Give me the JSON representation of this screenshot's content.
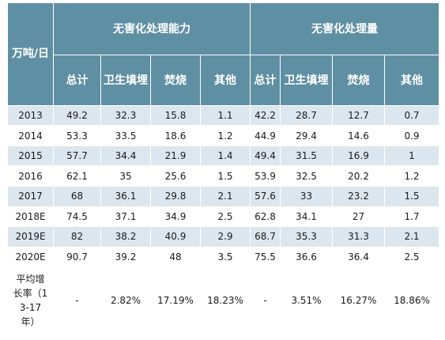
{
  "header": {
    "corner": "万吨/日",
    "group_capacity": "无害化处理能力",
    "group_volume": "无害化处理量",
    "columns": [
      "总计",
      "卫生填埋",
      "焚烧",
      "其他",
      "总计",
      "卫生填埋",
      "焚烧",
      "其他"
    ]
  },
  "rows": [
    {
      "year": "2013",
      "cells": [
        "49.2",
        "32.3",
        "15.8",
        "1.1",
        "42.2",
        "28.7",
        "12.7",
        "0.7"
      ]
    },
    {
      "year": "2014",
      "cells": [
        "53.3",
        "33.5",
        "18.6",
        "1.2",
        "44.9",
        "29.4",
        "14.6",
        "0.9"
      ]
    },
    {
      "year": "2015",
      "cells": [
        "57.7",
        "34.4",
        "21.9",
        "1.4",
        "49.4",
        "31.5",
        "16.9",
        "1"
      ]
    },
    {
      "year": "2016",
      "cells": [
        "62.1",
        "35",
        "25.6",
        "1.5",
        "53.9",
        "32.5",
        "20.2",
        "1.2"
      ]
    },
    {
      "year": "2017",
      "cells": [
        "68",
        "36.1",
        "29.8",
        "2.1",
        "57.6",
        "33",
        "23.2",
        "1.5"
      ]
    },
    {
      "year": "2018E",
      "cells": [
        "74.5",
        "37.1",
        "34.9",
        "2.5",
        "62.8",
        "34.1",
        "27",
        "1.7"
      ]
    },
    {
      "year": "2019E",
      "cells": [
        "82",
        "38.2",
        "40.9",
        "2.9",
        "68.7",
        "35.3",
        "31.3",
        "2.1"
      ]
    },
    {
      "year": "2020E",
      "cells": [
        "90.7",
        "39.2",
        "48",
        "3.5",
        "75.5",
        "36.6",
        "36.4",
        "2.5"
      ]
    }
  ],
  "footer": {
    "label": "平均增长率（13-17年）",
    "cells": [
      "-",
      "2.82%",
      "17.19%",
      "18.23%",
      "-",
      "3.51%",
      "16.27%",
      "18.86%"
    ]
  }
}
